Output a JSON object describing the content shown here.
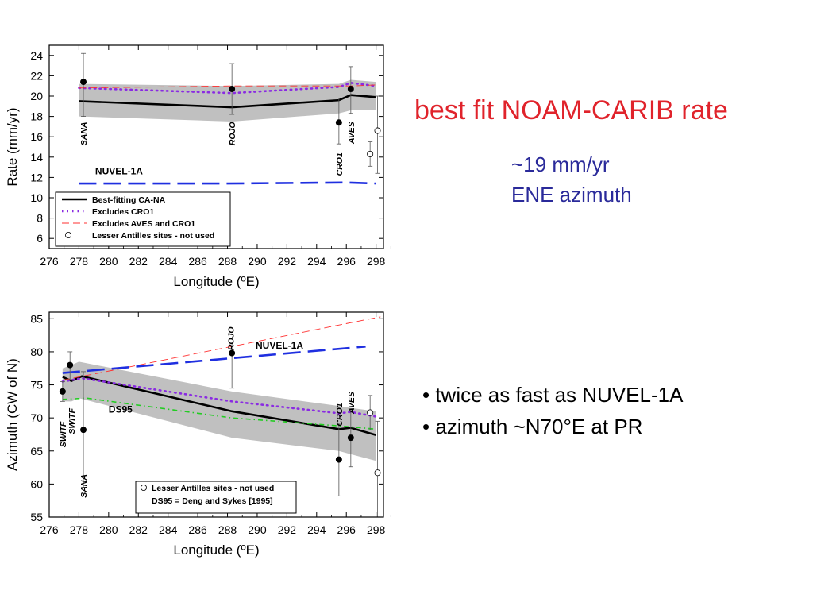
{
  "right_panel": {
    "heading": "best fit NOAM-CARIB rate",
    "sub1": "~19 mm/yr",
    "sub2": "ENE azimuth",
    "bullet1": "• twice as fast as NUVEL-1A",
    "bullet2": "• azimuth ~N70°E at PR"
  },
  "colors": {
    "best_fit": "#000000",
    "excl_cro1": "#8a2be2",
    "excl_aves_cro1": "#ff3030",
    "nuvel": "#1f2fe0",
    "ds95": "#22cc22",
    "band": "#c0c0c0",
    "heading": "#e0232b",
    "sub": "#2a2a9a"
  },
  "chart_data": [
    {
      "type": "line",
      "title": "",
      "xlabel": "Longitude (ºE)",
      "ylabel": "Rate (mm/yr)",
      "xlim": [
        276,
        298.5
      ],
      "ylim": [
        5,
        25
      ],
      "xticks": [
        276,
        278,
        280,
        282,
        284,
        286,
        288,
        290,
        292,
        294,
        296,
        298
      ],
      "yticks": [
        6,
        8,
        10,
        12,
        14,
        16,
        18,
        20,
        22,
        24
      ],
      "band": {
        "x": [
          278,
          288.3,
          295.5,
          296.3,
          298
        ],
        "upper": [
          21.2,
          21.0,
          21.2,
          21.6,
          21.4
        ],
        "lower": [
          18.0,
          17.5,
          18.3,
          18.6,
          18.6
        ]
      },
      "series": [
        {
          "name": "Best-fitting CA-NA",
          "style": "solid",
          "color": "#000000",
          "x": [
            278,
            288.3,
            295.5,
            296.3,
            298
          ],
          "y": [
            19.5,
            18.9,
            19.6,
            20.1,
            19.9
          ]
        },
        {
          "name": "Excludes CRO1",
          "style": "dotted",
          "color": "#8a2be2",
          "x": [
            278,
            288.3,
            295.5,
            296.3,
            298
          ],
          "y": [
            20.8,
            20.3,
            20.9,
            21.3,
            21.0
          ]
        },
        {
          "name": "Excludes AVES and CRO1",
          "style": "thin-dashed",
          "color": "#ff3030",
          "x": [
            278,
            288.3,
            295.5,
            296.3,
            298
          ],
          "y": [
            20.8,
            21.0,
            21.0,
            21.0,
            21.1
          ]
        },
        {
          "name": "NUVEL-1A",
          "style": "long-dashed",
          "color": "#1f2fe0",
          "x": [
            278,
            288,
            296,
            298
          ],
          "y": [
            11.4,
            11.4,
            11.5,
            11.4
          ]
        }
      ],
      "points": [
        {
          "x": 278.3,
          "y": 21.4,
          "lo": 18.0,
          "hi": 24.2,
          "filled": true
        },
        {
          "x": 288.3,
          "y": 20.7,
          "lo": 18.2,
          "hi": 23.2,
          "filled": true
        },
        {
          "x": 295.5,
          "y": 17.4,
          "lo": 15.3,
          "hi": 19.8,
          "filled": true
        },
        {
          "x": 296.3,
          "y": 20.7,
          "lo": 18.3,
          "hi": 22.9,
          "filled": true
        },
        {
          "x": 297.6,
          "y": 14.3,
          "lo": 13.1,
          "hi": 15.5,
          "filled": false
        },
        {
          "x": 298.1,
          "y": 16.6,
          "lo": 12.4,
          "hi": 20.0,
          "filled": false
        }
      ],
      "site_labels": [
        {
          "text": "SANA",
          "x": 278.3,
          "y": 16.3
        },
        {
          "text": "ROJO",
          "x": 288.3,
          "y": 16.3
        },
        {
          "text": "CRO1",
          "x": 295.5,
          "y": 13.3
        },
        {
          "text": "AVES",
          "x": 296.3,
          "y": 16.4
        }
      ],
      "annotations": [
        {
          "text": "NUVEL-1A",
          "x": 280.7,
          "y": 12.3
        }
      ],
      "legend": {
        "position": "bottom-left",
        "entries": [
          "Best-fitting CA-NA",
          "Excludes CRO1",
          "Excludes AVES and CRO1",
          "Lesser Antilles sites - not used"
        ]
      }
    },
    {
      "type": "line",
      "title": "",
      "xlabel": "Longitude (ºE)",
      "ylabel": "Azimuth (CW of N)",
      "xlim": [
        276,
        298.5
      ],
      "ylim": [
        55,
        86
      ],
      "xticks": [
        276,
        278,
        280,
        282,
        284,
        286,
        288,
        290,
        292,
        294,
        296,
        298
      ],
      "yticks": [
        55,
        60,
        65,
        70,
        75,
        80,
        85
      ],
      "band": {
        "x": [
          276.9,
          277.5,
          278,
          288.3,
          295.5,
          296.3,
          298
        ],
        "upper": [
          77.5,
          78.0,
          78.5,
          74.0,
          71.8,
          71.5,
          71.0
        ],
        "lower": [
          72.5,
          72.5,
          73.0,
          67.0,
          65.0,
          64.5,
          63.5
        ]
      },
      "series": [
        {
          "name": "Best-fitting CA-NA",
          "style": "solid",
          "color": "#000000",
          "x": [
            276.9,
            277.5,
            278.2,
            288.3,
            295.5,
            296.3,
            298
          ],
          "y": [
            76.2,
            75.6,
            76.3,
            71.0,
            68.3,
            68.5,
            67.4
          ]
        },
        {
          "name": "Excludes CRO1",
          "style": "dotted",
          "color": "#8a2be2",
          "x": [
            276.9,
            278.2,
            288.3,
            295.5,
            296.3,
            298
          ],
          "y": [
            75.5,
            76.0,
            72.5,
            70.7,
            70.9,
            70.2
          ]
        },
        {
          "name": "Excludes AVES and CRO1",
          "style": "thin-dashed",
          "color": "#ff3030",
          "x": [
            276.9,
            298.3
          ],
          "y": [
            75.7,
            85.3
          ]
        },
        {
          "name": "NUVEL-1A",
          "style": "long-dashed",
          "color": "#1f2fe0",
          "x": [
            276.9,
            297.3
          ],
          "y": [
            76.8,
            80.8
          ]
        },
        {
          "name": "DS95",
          "style": "dash-dot",
          "color": "#22cc22",
          "x": [
            276.9,
            278.5,
            288.3,
            295.5,
            298
          ],
          "y": [
            72.8,
            73.0,
            70.0,
            68.8,
            68.3
          ]
        }
      ],
      "points": [
        {
          "x": 276.9,
          "y": 74.0,
          "lo": 72.5,
          "hi": 75.5,
          "filled": true
        },
        {
          "x": 277.4,
          "y": 78.0,
          "lo": 75.8,
          "hi": 80.0,
          "filled": true
        },
        {
          "x": 278.3,
          "y": 68.2,
          "lo": 59.5,
          "hi": 77.0,
          "filled": true
        },
        {
          "x": 288.3,
          "y": 79.8,
          "lo": 74.5,
          "hi": 81.5,
          "filled": true
        },
        {
          "x": 295.5,
          "y": 63.7,
          "lo": 58.2,
          "hi": 69.2,
          "filled": true
        },
        {
          "x": 296.3,
          "y": 67.0,
          "lo": 62.6,
          "hi": 71.4,
          "filled": true
        },
        {
          "x": 297.6,
          "y": 70.8,
          "lo": 68.2,
          "hi": 73.4,
          "filled": false
        },
        {
          "x": 298.1,
          "y": 61.7,
          "lo": 55.0,
          "hi": 69.5,
          "filled": false
        }
      ],
      "site_labels": [
        {
          "text": "SWITF",
          "x": 276.9,
          "y": 67.5
        },
        {
          "text": "SWITF",
          "x": 277.5,
          "y": 69.5
        },
        {
          "text": "SANA",
          "x": 278.3,
          "y": 59.7
        },
        {
          "text": "ROJO",
          "x": 288.2,
          "y": 82.0
        },
        {
          "text": "CRO1",
          "x": 295.5,
          "y": 70.5
        },
        {
          "text": "AVES",
          "x": 296.3,
          "y": 72.3
        }
      ],
      "annotations": [
        {
          "text": "NUVEL-1A",
          "x": 291.5,
          "y": 80.5
        },
        {
          "text": "DS95",
          "x": 280.8,
          "y": 70.8
        }
      ],
      "legend": {
        "position": "bottom-right",
        "entries": [
          "Lesser Antilles sites - not used",
          "DS95 = Deng and Sykes [1995]"
        ]
      }
    }
  ]
}
